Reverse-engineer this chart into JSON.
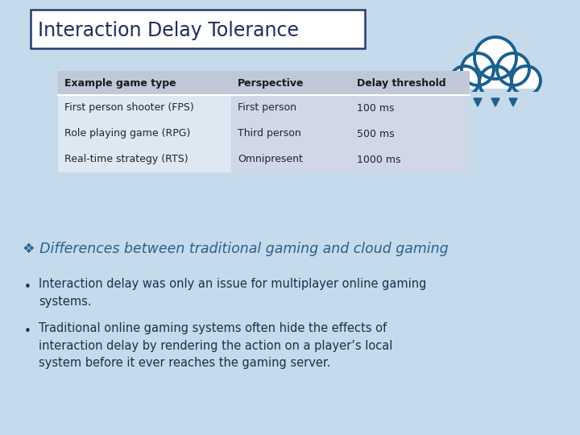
{
  "title": "Interaction Delay Tolerance",
  "background_color": "#c5daea",
  "title_box_color": "#ffffff",
  "title_text_color": "#1e2d5a",
  "table_headers": [
    "Example game type",
    "Perspective",
    "Delay threshold"
  ],
  "table_rows": [
    [
      "First person shooter (FPS)",
      "First person",
      "100 ms"
    ],
    [
      "Role playing game (RPG)",
      "Third person",
      "500 ms"
    ],
    [
      "Real-time strategy (RTS)",
      "Omnipresent",
      "1000 ms"
    ]
  ],
  "table_header_bg": "#c0c8d8",
  "table_col2_bg": "#d0d8e8",
  "table_row_bg": "#dde8f2",
  "section_heading": "❖ Differences between traditional gaming and cloud gaming",
  "section_heading_color": "#2a6090",
  "bullet_points": [
    "Interaction delay was only an issue for multiplayer online gaming\nsystems.",
    "Traditional online gaming systems often hide the effects of\ninteraction delay by rendering the action on a player’s local\nsystem before it ever reaches the gaming server."
  ],
  "bullet_color": "#1a3050",
  "cloud_color": "#1a6090",
  "cloud_fill": "#ffffff"
}
